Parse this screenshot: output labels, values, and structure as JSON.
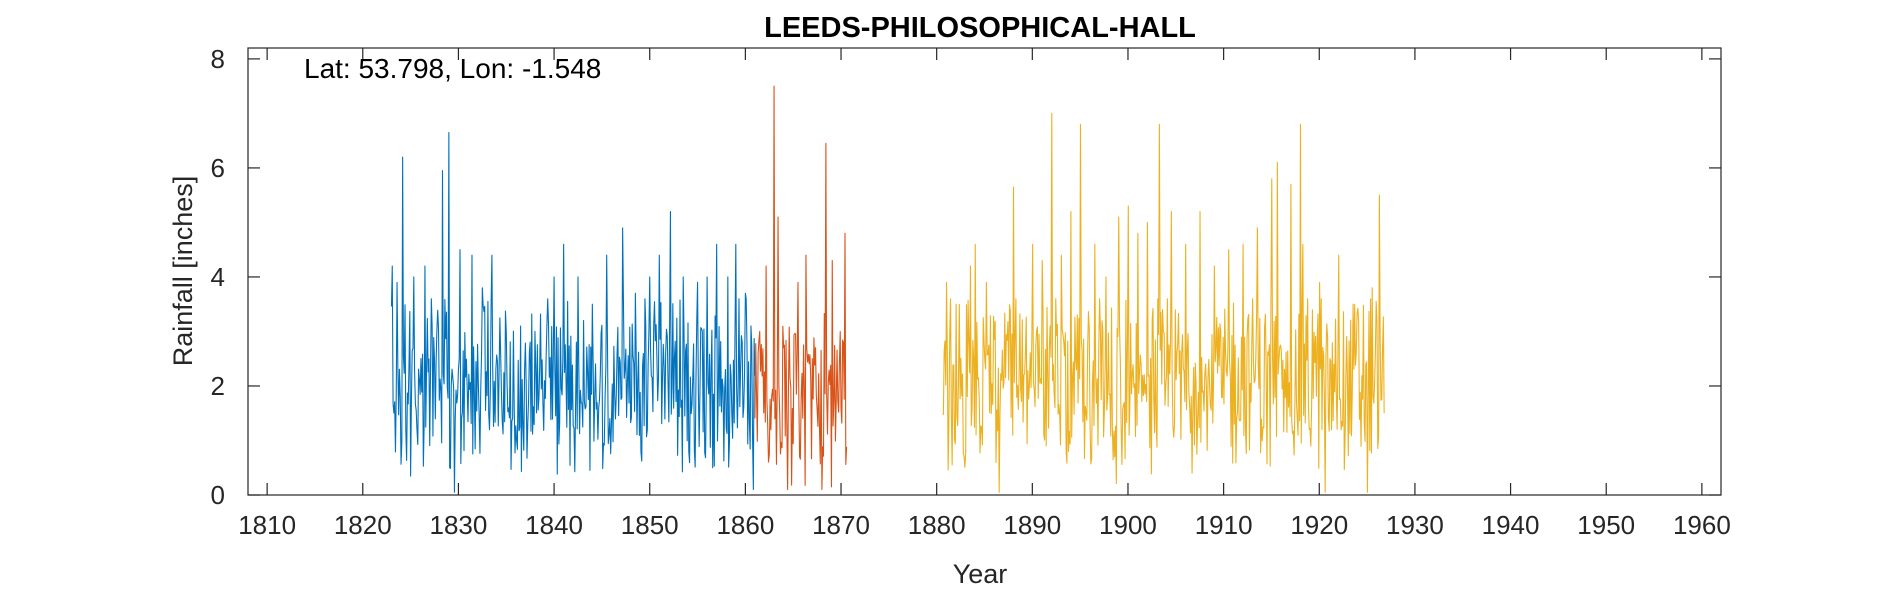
{
  "chart_data": {
    "type": "line",
    "title": "LEEDS-PHILOSOPHICAL-HALL",
    "xlabel": "Year",
    "ylabel": "Rainfall [inches]",
    "annotation": "Lat: 53.798, Lon: -1.548",
    "xlim": [
      1808,
      1962
    ],
    "ylim": [
      0,
      8.2
    ],
    "x_ticks": [
      1810,
      1820,
      1830,
      1840,
      1850,
      1860,
      1870,
      1880,
      1890,
      1900,
      1910,
      1920,
      1930,
      1940,
      1950,
      1960
    ],
    "y_ticks": [
      0,
      2,
      4,
      6,
      8
    ],
    "grid": false,
    "legend": "none",
    "resolution": "monthly",
    "series": [
      {
        "color": "#0072BD",
        "x_range": [
          1823.0,
          1861.0
        ],
        "baseline_mean": 2.0,
        "peaks": [
          {
            "x": 1823.1,
            "y": 4.2
          },
          {
            "x": 1823.6,
            "y": 3.9
          },
          {
            "x": 1824.2,
            "y": 6.2
          },
          {
            "x": 1825.3,
            "y": 4.0
          },
          {
            "x": 1826.5,
            "y": 4.2
          },
          {
            "x": 1827.2,
            "y": 3.6
          },
          {
            "x": 1828.3,
            "y": 5.95
          },
          {
            "x": 1829.0,
            "y": 6.65
          },
          {
            "x": 1829.6,
            "y": 0.05
          },
          {
            "x": 1830.2,
            "y": 4.5
          },
          {
            "x": 1831.4,
            "y": 4.4
          },
          {
            "x": 1832.5,
            "y": 3.8
          },
          {
            "x": 1833.5,
            "y": 4.4
          },
          {
            "x": 1835.0,
            "y": 3.0
          },
          {
            "x": 1836.5,
            "y": 3.1
          },
          {
            "x": 1838.0,
            "y": 3.0
          },
          {
            "x": 1840.0,
            "y": 4.0
          },
          {
            "x": 1841.0,
            "y": 4.6
          },
          {
            "x": 1842.5,
            "y": 4.0
          },
          {
            "x": 1844.0,
            "y": 3.5
          },
          {
            "x": 1845.5,
            "y": 4.4
          },
          {
            "x": 1847.2,
            "y": 4.9
          },
          {
            "x": 1848.5,
            "y": 3.7
          },
          {
            "x": 1850.0,
            "y": 4.0
          },
          {
            "x": 1851.0,
            "y": 4.4
          },
          {
            "x": 1852.2,
            "y": 5.2
          },
          {
            "x": 1853.5,
            "y": 4.0
          },
          {
            "x": 1855.0,
            "y": 3.9
          },
          {
            "x": 1856.0,
            "y": 4.0
          },
          {
            "x": 1857.0,
            "y": 4.6
          },
          {
            "x": 1858.2,
            "y": 4.0
          },
          {
            "x": 1859.0,
            "y": 4.6
          },
          {
            "x": 1860.0,
            "y": 3.7
          },
          {
            "x": 1860.8,
            "y": 0.1
          }
        ]
      },
      {
        "color": "#D95319",
        "x_range": [
          1861.0,
          1870.6
        ],
        "baseline_mean": 1.8,
        "peaks": [
          {
            "x": 1861.5,
            "y": 3.0
          },
          {
            "x": 1862.2,
            "y": 4.2
          },
          {
            "x": 1863.0,
            "y": 7.5
          },
          {
            "x": 1863.4,
            "y": 5.1
          },
          {
            "x": 1864.0,
            "y": 2.7
          },
          {
            "x": 1864.4,
            "y": 0.1
          },
          {
            "x": 1865.5,
            "y": 3.9
          },
          {
            "x": 1866.3,
            "y": 4.4
          },
          {
            "x": 1867.0,
            "y": 2.5
          },
          {
            "x": 1868.0,
            "y": 0.1
          },
          {
            "x": 1868.4,
            "y": 6.45
          },
          {
            "x": 1869.1,
            "y": 4.3
          },
          {
            "x": 1870.4,
            "y": 4.8
          }
        ]
      },
      {
        "color": "#EDB120",
        "x_range": [
          1880.7,
          1926.8
        ],
        "baseline_mean": 2.1,
        "peaks": [
          {
            "x": 1881.0,
            "y": 3.9
          },
          {
            "x": 1882.0,
            "y": 3.5
          },
          {
            "x": 1883.5,
            "y": 4.2
          },
          {
            "x": 1884.0,
            "y": 4.6
          },
          {
            "x": 1885.2,
            "y": 3.9
          },
          {
            "x": 1886.5,
            "y": 0.05
          },
          {
            "x": 1888.0,
            "y": 5.65
          },
          {
            "x": 1890.0,
            "y": 4.6
          },
          {
            "x": 1891.0,
            "y": 4.3
          },
          {
            "x": 1892.0,
            "y": 7.0
          },
          {
            "x": 1893.0,
            "y": 4.4
          },
          {
            "x": 1894.0,
            "y": 5.2
          },
          {
            "x": 1895.0,
            "y": 6.8
          },
          {
            "x": 1896.5,
            "y": 4.6
          },
          {
            "x": 1897.7,
            "y": 4.0
          },
          {
            "x": 1899.0,
            "y": 5.1
          },
          {
            "x": 1900.0,
            "y": 5.3
          },
          {
            "x": 1901.0,
            "y": 4.8
          },
          {
            "x": 1902.0,
            "y": 5.0
          },
          {
            "x": 1903.3,
            "y": 6.8
          },
          {
            "x": 1904.5,
            "y": 5.2
          },
          {
            "x": 1906.0,
            "y": 4.6
          },
          {
            "x": 1907.5,
            "y": 5.2
          },
          {
            "x": 1909.0,
            "y": 4.2
          },
          {
            "x": 1910.5,
            "y": 4.5
          },
          {
            "x": 1912.0,
            "y": 4.6
          },
          {
            "x": 1913.5,
            "y": 4.9
          },
          {
            "x": 1915.0,
            "y": 5.8
          },
          {
            "x": 1915.6,
            "y": 6.1
          },
          {
            "x": 1917.0,
            "y": 5.7
          },
          {
            "x": 1918.0,
            "y": 6.8
          },
          {
            "x": 1918.3,
            "y": 4.6
          },
          {
            "x": 1920.0,
            "y": 3.9
          },
          {
            "x": 1920.6,
            "y": 0.05
          },
          {
            "x": 1922.0,
            "y": 4.4
          },
          {
            "x": 1923.5,
            "y": 3.5
          },
          {
            "x": 1925.0,
            "y": 0.05
          },
          {
            "x": 1925.5,
            "y": 3.8
          },
          {
            "x": 1926.3,
            "y": 5.5
          }
        ]
      }
    ]
  }
}
